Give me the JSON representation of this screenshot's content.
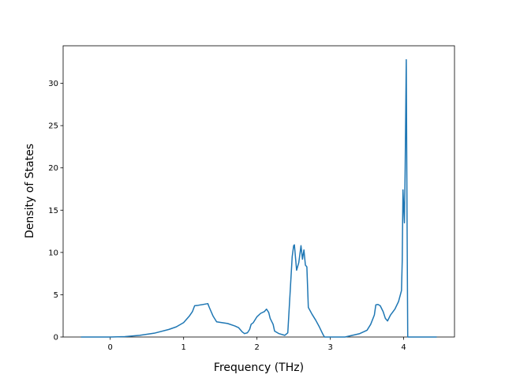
{
  "chart_data": {
    "type": "line",
    "xlabel": "Frequency (THz)",
    "ylabel": "Density of States",
    "x": [
      -0.4,
      0,
      0.2,
      0.4,
      0.6,
      0.8,
      0.9,
      1.0,
      1.08,
      1.12,
      1.15,
      1.2,
      1.33,
      1.35,
      1.4,
      1.45,
      1.6,
      1.7,
      1.75,
      1.8,
      1.83,
      1.87,
      1.9,
      1.92,
      1.95,
      2.0,
      2.05,
      2.1,
      2.13,
      2.16,
      2.18,
      2.22,
      2.24,
      2.3,
      2.38,
      2.42,
      2.45,
      2.48,
      2.5,
      2.51,
      2.54,
      2.57,
      2.6,
      2.62,
      2.64,
      2.66,
      2.68,
      2.7,
      2.75,
      2.8,
      2.85,
      2.9,
      2.92,
      3.2,
      3.3,
      3.4,
      3.5,
      3.55,
      3.6,
      3.62,
      3.65,
      3.68,
      3.72,
      3.75,
      3.78,
      3.82,
      3.88,
      3.93,
      3.97,
      3.98,
      3.99,
      4.01,
      4.02,
      4.035,
      4.045,
      4.055,
      4.45
    ],
    "series": [
      {
        "color": "#1f77b4",
        "values": [
          0,
          0,
          0.05,
          0.2,
          0.45,
          0.9,
          1.2,
          1.7,
          2.5,
          3.0,
          3.7,
          3.75,
          3.95,
          3.5,
          2.5,
          1.8,
          1.6,
          1.3,
          1.1,
          0.6,
          0.4,
          0.5,
          0.9,
          1.5,
          1.7,
          2.4,
          2.8,
          3.0,
          3.3,
          2.9,
          2.2,
          1.5,
          0.7,
          0.4,
          0.2,
          0.5,
          5,
          9.5,
          10.8,
          10.9,
          7.9,
          8.8,
          10.8,
          9.2,
          10.3,
          8.5,
          8.3,
          3.5,
          2.7,
          2,
          1.2,
          0.3,
          0,
          0,
          0.2,
          0.4,
          0.8,
          1.5,
          2.6,
          3.8,
          3.85,
          3.7,
          3.0,
          2.2,
          1.9,
          2.6,
          3.3,
          4.2,
          5.5,
          9,
          17.4,
          13.5,
          20,
          32.8,
          15,
          0,
          0
        ]
      }
    ],
    "xlim": [
      -0.6425,
      4.6925
    ],
    "ylim": [
      0,
      34.44
    ],
    "xticks": [
      0,
      1,
      2,
      3,
      4
    ],
    "yticks": [
      0,
      5,
      10,
      15,
      20,
      25,
      30
    ]
  }
}
